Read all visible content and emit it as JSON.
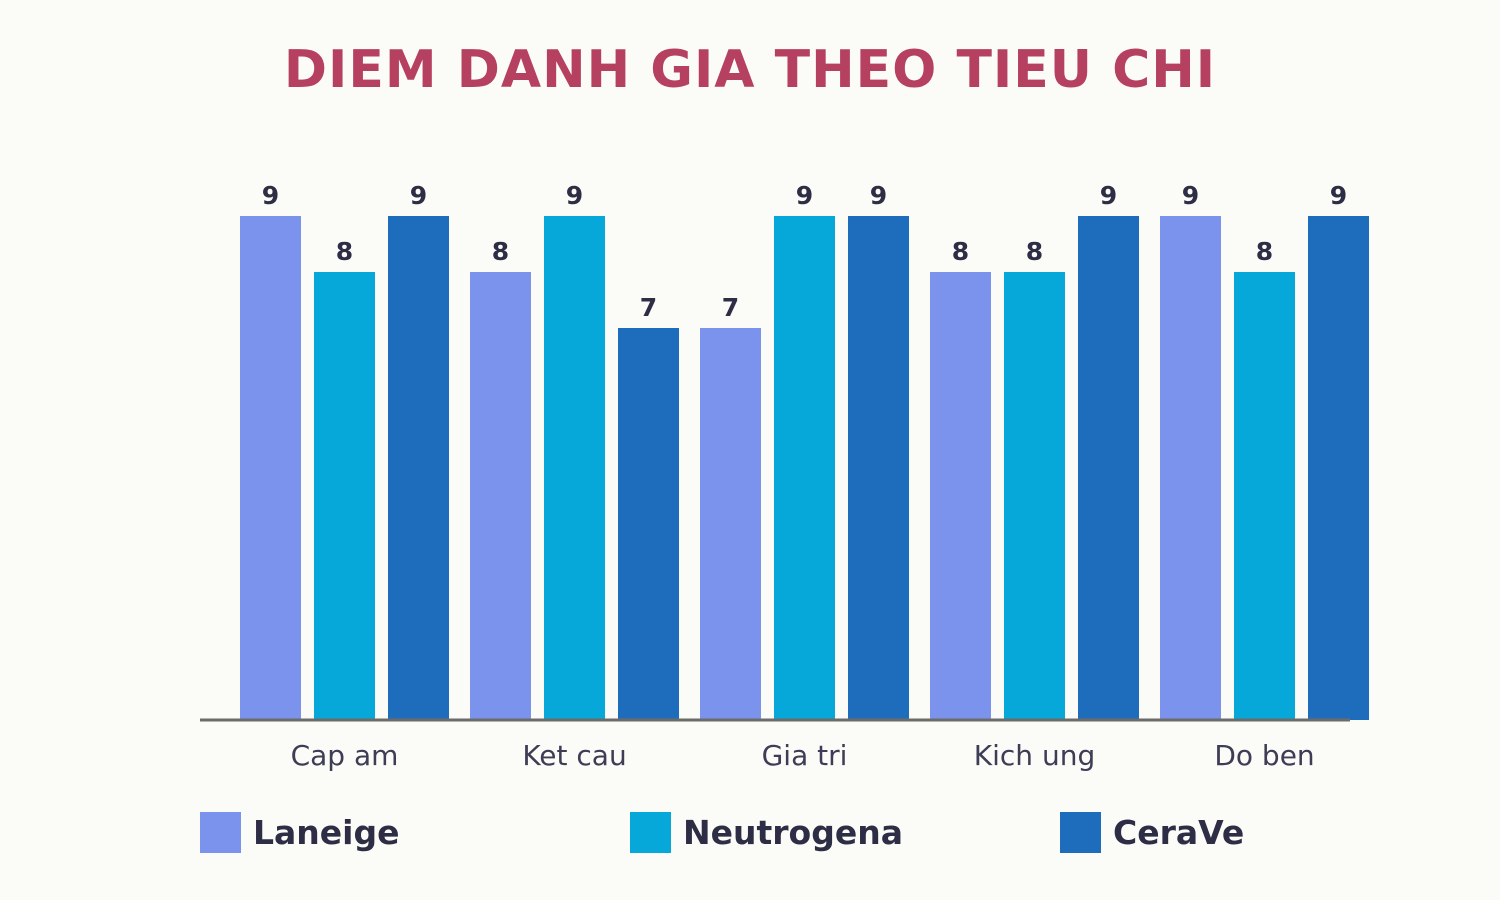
{
  "chart_data": {
    "type": "bar",
    "title": "DIEM DANH GIA THEO TIEU CHI",
    "categories": [
      "Cap am",
      "Ket cau",
      "Gia tri",
      "Kich ung",
      "Do ben"
    ],
    "series": [
      {
        "name": "Laneige",
        "color": "#7b93ec",
        "values": [
          9,
          8,
          7,
          8,
          9
        ]
      },
      {
        "name": "Neutrogena",
        "color": "#05a8d9",
        "values": [
          8,
          9,
          9,
          8,
          8
        ]
      },
      {
        "name": "CeraVe",
        "color": "#1e6dbd",
        "values": [
          9,
          7,
          9,
          9,
          9
        ]
      }
    ],
    "ylim": [
      0,
      9
    ],
    "data_labels": true,
    "grid": false,
    "legend_position": "bottom",
    "colors": {
      "title": "#b5405f",
      "text": "#2d2d45",
      "axis": "#6b6b6b",
      "background": "#fbfbf7"
    }
  }
}
